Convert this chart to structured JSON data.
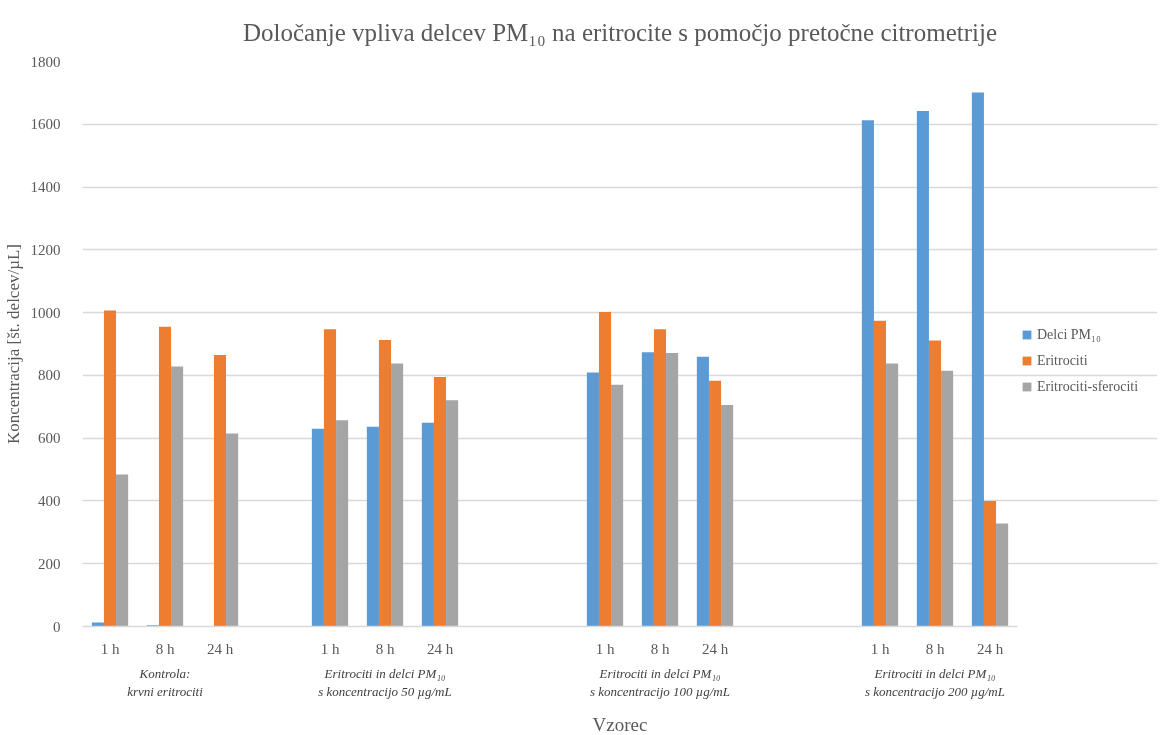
{
  "chart_data": {
    "type": "bar",
    "title": "Določanje vpliva delcev PM₁₀ na eritrocite s pomočjo pretočne citrometrije",
    "xlabel": "Vzorec",
    "ylabel": "Koncentracija [št. delcev/µL]",
    "categories": [
      "1 h",
      "8 h",
      "24 h",
      null,
      "1 h",
      "8 h",
      "24 h",
      null,
      null,
      "1 h",
      "8 h",
      "24 h",
      null,
      null,
      "1 h",
      "8 h",
      "24 h"
    ],
    "series": [
      {
        "name": "Delci PM₁₀",
        "color": "#5b9bd5",
        "values": [
          13,
          4,
          null,
          null,
          630,
          636,
          649,
          null,
          null,
          809,
          874,
          859,
          null,
          null,
          1613,
          1642,
          1701
        ]
      },
      {
        "name": "Eritrociti",
        "color": "#ed7d31",
        "values": [
          1007,
          955,
          865,
          null,
          947,
          913,
          795,
          null,
          null,
          1002,
          947,
          783,
          null,
          null,
          974,
          911,
          400
        ]
      },
      {
        "name": "Eritrociti-sferociti",
        "color": "#a5a5a5",
        "values": [
          484,
          828,
          615,
          null,
          657,
          838,
          721,
          null,
          null,
          770,
          871,
          706,
          null,
          null,
          838,
          815,
          328
        ]
      }
    ],
    "annotations": [
      "Kontrola:\nkrvni eritrociti",
      "Eritrociti in delci PM₁₀\ns koncentracijo 50 µg/mL",
      "Eritrociti in delci PM₁₀\ns koncentracijo 100 µg/mL",
      "Eritrociti in delci PM₁₀\ns koncentracijo 200 µg/mL"
    ],
    "ylim": [
      0,
      1800
    ],
    "yticks": [
      0,
      200,
      400,
      600,
      800,
      1000,
      1200,
      1400,
      1600,
      1800
    ],
    "grid": "y",
    "legend": "right"
  }
}
